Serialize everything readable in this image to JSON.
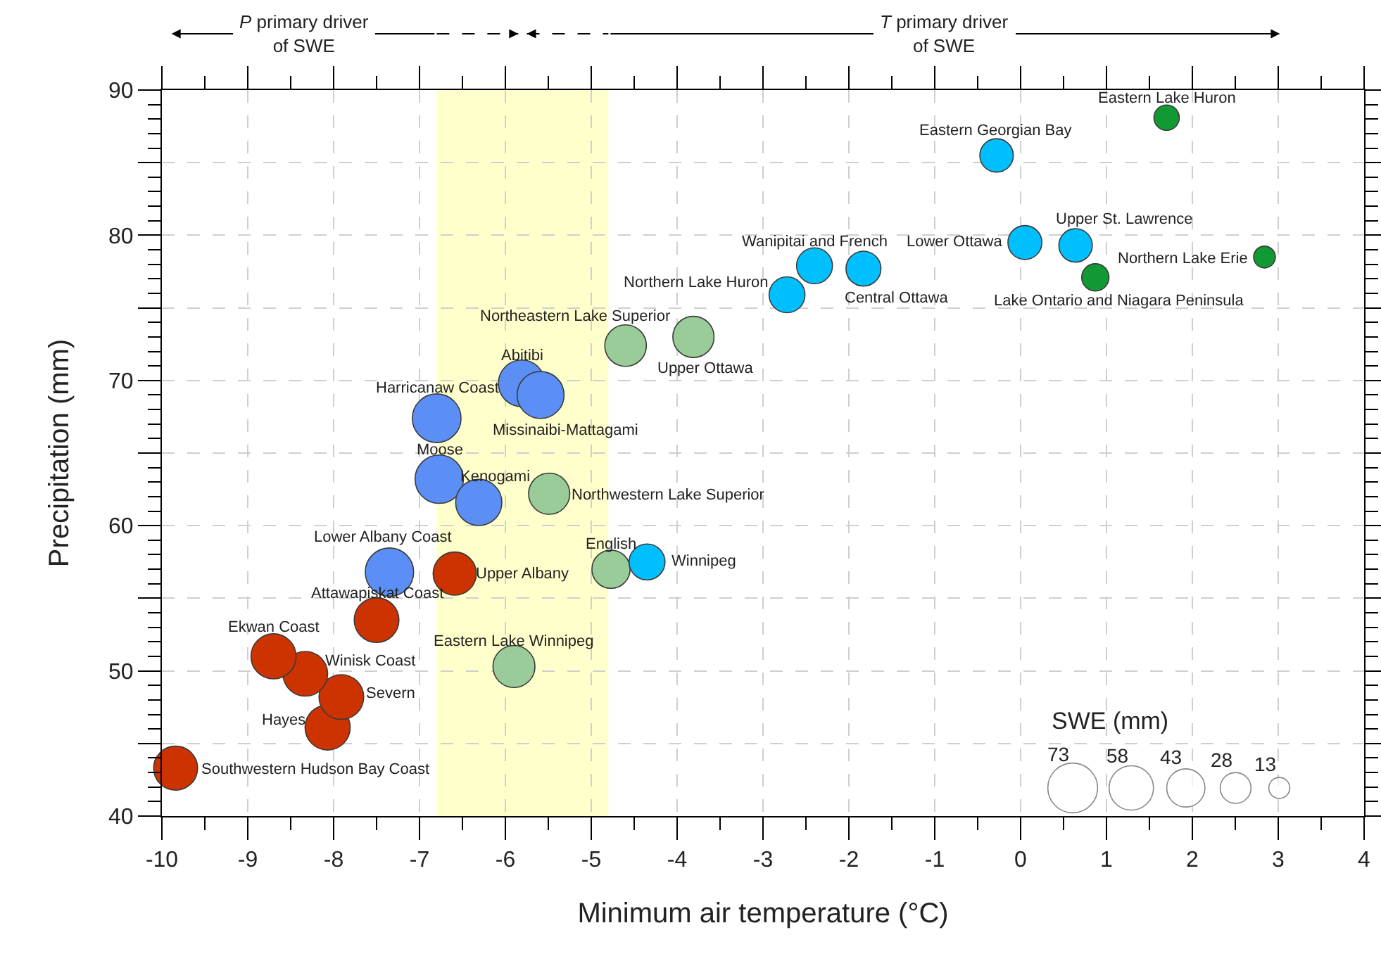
{
  "chart_data": {
    "type": "bubble",
    "xlabel": "Minimum air temperature (°C)",
    "ylabel": "Precipitation (mm)",
    "legend_title": "SWE (mm)",
    "size_legend": [
      73,
      58,
      43,
      28,
      13
    ],
    "marker": "circle",
    "grid": true,
    "xlim": [
      -10,
      4
    ],
    "xticks": [
      -10,
      -9,
      -8,
      -7,
      -6,
      -5,
      -4,
      -3,
      -2,
      -1,
      0,
      1,
      2,
      3,
      4
    ],
    "ylim": [
      40,
      90
    ],
    "yticks": [
      40,
      {
        "value": 45,
        "label": null
      },
      50,
      {
        "value": 55,
        "label": null
      },
      60,
      {
        "value": 65,
        "label": null
      },
      70,
      {
        "value": 75,
        "label": null
      },
      80,
      {
        "value": 85,
        "label": null
      },
      90
    ],
    "bands": [
      {
        "axis": "x",
        "from": -6.8,
        "to": -4.8,
        "color": "#ffffcc"
      }
    ],
    "series": [
      {
        "color": "#cc3300",
        "x": [
          -9.84,
          -8.07,
          -7.91,
          -8.33,
          -8.7,
          -7.5,
          -6.59
        ],
        "values": [
          43.3,
          46.1,
          48.2,
          49.8,
          51.0,
          53.5,
          56.7
        ],
        "sizes": [
          57,
          60,
          59,
          59,
          60,
          59,
          55
        ]
      },
      {
        "color": "#5b8ff5",
        "x": [
          -7.35,
          -6.77,
          -6.31,
          -6.8,
          -5.81,
          -5.59
        ],
        "values": [
          56.8,
          63.2,
          61.6,
          67.4,
          69.8,
          69.0
        ],
        "sizes": [
          69,
          69,
          63,
          70,
          64,
          65
        ]
      },
      {
        "color": "#99cc99",
        "x": [
          -5.9,
          -4.77,
          -5.49,
          -4.6,
          -3.81
        ],
        "values": [
          50.3,
          57.0,
          62.2,
          72.4,
          73.0
        ],
        "sizes": [
          52,
          43,
          50,
          51,
          50
        ]
      },
      {
        "color": "#00bfff",
        "x": [
          -4.35,
          -2.72,
          -2.4,
          -1.83,
          -0.28,
          0.05,
          0.64
        ],
        "values": [
          57.5,
          75.9,
          77.9,
          77.7,
          85.5,
          79.5,
          79.3
        ],
        "sizes": [
          38,
          38,
          38,
          36,
          33,
          34,
          33
        ]
      },
      {
        "color": "#119933",
        "x": [
          1.7,
          2.84,
          0.87
        ],
        "values": [
          88.1,
          78.5,
          77.1
        ],
        "sizes": [
          19,
          14,
          22
        ]
      }
    ],
    "annotations": [
      "P primary driver\nof SWE",
      "T primary driver\nof SWE",
      {
        "text": "Southwestern Hudson Bay Coast",
        "x": -9.84,
        "y": 43.3
      },
      {
        "text": "Hayes",
        "x": -8.07,
        "y": 46.1
      },
      {
        "text": "Severn",
        "x": -7.91,
        "y": 48.2
      },
      {
        "text": "Winisk Coast",
        "x": -8.33,
        "y": 49.8
      },
      {
        "text": "Ekwan Coast",
        "x": -8.7,
        "y": 51.0
      },
      {
        "text": "Attawapiskat Coast",
        "x": -7.5,
        "y": 53.5
      },
      {
        "text": "Upper Albany",
        "x": -6.59,
        "y": 56.7
      },
      {
        "text": "Lower Albany Coast",
        "x": -7.35,
        "y": 56.8
      },
      {
        "text": "Moose",
        "x": -6.77,
        "y": 63.2
      },
      {
        "text": "Kenogami",
        "x": -6.31,
        "y": 61.6
      },
      {
        "text": "Harricanaw Coast",
        "x": -6.8,
        "y": 67.4
      },
      {
        "text": "Abitibi",
        "x": -5.81,
        "y": 69.8
      },
      {
        "text": "Missinaibi-Mattagami",
        "x": -5.59,
        "y": 69.0
      },
      {
        "text": "Eastern Lake Winnipeg",
        "x": -5.9,
        "y": 50.3
      },
      {
        "text": "English",
        "x": -4.77,
        "y": 57.0
      },
      {
        "text": "Northwestern Lake Superior",
        "x": -5.49,
        "y": 62.2
      },
      {
        "text": "Northeastern Lake Superior",
        "x": -4.6,
        "y": 72.4
      },
      {
        "text": "Upper Ottawa",
        "x": -3.81,
        "y": 73.0
      },
      {
        "text": "Winnipeg",
        "x": -4.35,
        "y": 57.5
      },
      {
        "text": "Northern Lake Huron",
        "x": -2.72,
        "y": 75.9
      },
      {
        "text": "Wanipitai and French",
        "x": -2.4,
        "y": 77.9
      },
      {
        "text": "Central Ottawa",
        "x": -1.83,
        "y": 77.7
      },
      {
        "text": "Eastern Georgian Bay",
        "x": -0.28,
        "y": 85.5
      },
      {
        "text": "Lower Ottawa",
        "x": 0.05,
        "y": 79.5
      },
      {
        "text": "Upper St. Lawrence",
        "x": 0.64,
        "y": 79.3
      },
      {
        "text": "Eastern Lake Huron",
        "x": 1.7,
        "y": 88.1
      },
      {
        "text": "Northern Lake Erie",
        "x": 2.84,
        "y": 78.5
      },
      {
        "text": "Lake Ontario and Niagara Peninsula",
        "x": 0.87,
        "y": 77.1
      }
    ]
  }
}
